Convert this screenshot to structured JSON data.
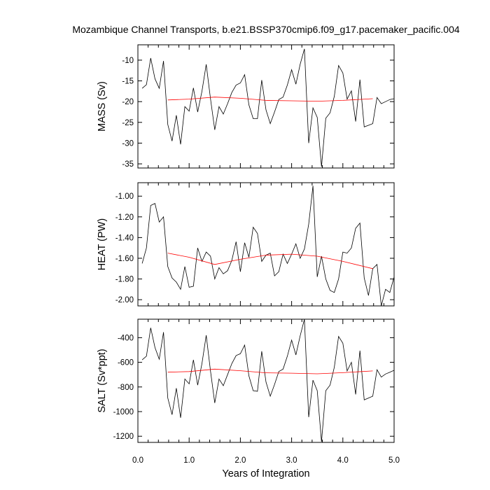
{
  "title": "Mozambique Channel Transports, b.e21.BSSP370cmip6.f09_g17.pacemaker_pacific.004",
  "chart_data": {
    "type": "line",
    "xlabel": "Years of Integration",
    "xlim": [
      0,
      5
    ],
    "xticks": [
      0,
      1,
      2,
      3,
      4,
      5
    ],
    "xtick_labels": [
      "0.0",
      "1.0",
      "2.0",
      "3.0",
      "4.0",
      "5.0"
    ],
    "x": [
      0.083,
      0.167,
      0.25,
      0.333,
      0.417,
      0.5,
      0.583,
      0.667,
      0.75,
      0.833,
      0.917,
      1.0,
      1.083,
      1.167,
      1.25,
      1.333,
      1.417,
      1.5,
      1.583,
      1.667,
      1.75,
      1.833,
      1.917,
      2.0,
      2.083,
      2.167,
      2.25,
      2.333,
      2.417,
      2.5,
      2.583,
      2.667,
      2.75,
      2.833,
      2.917,
      3.0,
      3.083,
      3.167,
      3.25,
      3.333,
      3.417,
      3.5,
      3.583,
      3.667,
      3.75,
      3.833,
      3.917,
      4.0,
      4.083,
      4.167,
      4.25,
      4.333,
      4.417,
      4.5,
      4.583,
      4.667,
      4.75,
      4.833,
      4.917,
      5.0
    ],
    "panels": [
      {
        "ylabel": "MASS (Sv)",
        "ylim": [
          -36,
          -6.3
        ],
        "yticks": [
          -35,
          -30,
          -25,
          -20,
          -15,
          -10
        ],
        "ytick_labels": [
          "-35",
          "-30",
          "-25",
          "-20",
          "-15",
          "-10"
        ],
        "series": [
          {
            "values": [
              -16.8,
              -15.9,
              -9.5,
              -14.5,
              -16.8,
              -10.2,
              -25.5,
              -29.5,
              -23.3,
              -30.3,
              -21.2,
              -22.3,
              -16.7,
              -22.5,
              -17.5,
              -11.0,
              -19.3,
              -26.8,
              -21.2,
              -23.0,
              -20.5,
              -17.8,
              -16.0,
              -15.5,
              -13.5,
              -20.8,
              -24.1,
              -24.1,
              -14.8,
              -22.0,
              -25.3,
              -22.5,
              -19.5,
              -18.9,
              -16.0,
              -12.3,
              -15.8,
              -11.0,
              -7.3,
              -30.0,
              -21.5,
              -23.8,
              -35.7,
              -24.0,
              -22.7,
              -18.7,
              -11.3,
              -13.1,
              -19.4,
              -17.4,
              -24.8,
              -14.7,
              -26.1,
              -25.7,
              -25.3,
              -19.0,
              -20.5,
              -20.0,
              -19.5,
              -19.3
            ],
            "color": "#000000"
          },
          {
            "x": [
              0.583,
              1.0,
              1.5,
              2.0,
              2.5,
              3.0,
              3.5,
              4.0,
              4.583
            ],
            "values": [
              -19.6,
              -19.4,
              -18.9,
              -19.2,
              -19.7,
              -19.8,
              -19.9,
              -19.7,
              -19.3
            ],
            "color": "#ff0000"
          }
        ]
      },
      {
        "ylabel": "HEAT (PW)",
        "ylim": [
          -2.06,
          -0.87
        ],
        "yticks": [
          -2.0,
          -1.8,
          -1.6,
          -1.4,
          -1.2,
          -1.0
        ],
        "ytick_labels": [
          "-2.00",
          "-1.80",
          "-1.60",
          "-1.40",
          "-1.20",
          "-1.00"
        ],
        "series": [
          {
            "values": [
              -1.65,
              -1.5,
              -1.09,
              -1.07,
              -1.25,
              -1.2,
              -1.68,
              -1.79,
              -1.83,
              -1.9,
              -1.68,
              -1.88,
              -1.87,
              -1.5,
              -1.63,
              -1.54,
              -1.58,
              -1.8,
              -1.69,
              -1.75,
              -1.72,
              -1.62,
              -1.44,
              -1.73,
              -1.45,
              -1.59,
              -1.3,
              -1.36,
              -1.63,
              -1.57,
              -1.55,
              -1.77,
              -1.73,
              -1.56,
              -1.65,
              -1.56,
              -1.46,
              -1.6,
              -1.51,
              -1.27,
              -0.9,
              -1.78,
              -1.58,
              -1.8,
              -1.91,
              -1.93,
              -1.8,
              -1.54,
              -1.55,
              -1.5,
              -1.31,
              -1.26,
              -1.79,
              -1.96,
              -1.7,
              -1.66,
              -2.06,
              -1.9,
              -1.93,
              -1.78
            ],
            "color": "#000000"
          },
          {
            "x": [
              0.583,
              1.0,
              1.5,
              2.0,
              2.5,
              3.0,
              3.5,
              4.0,
              4.583
            ],
            "values": [
              -1.55,
              -1.59,
              -1.66,
              -1.61,
              -1.57,
              -1.56,
              -1.58,
              -1.63,
              -1.7
            ],
            "color": "#ff0000"
          }
        ]
      },
      {
        "ylabel": "SALT (Sv*ppt)",
        "ylim": [
          -1250,
          -250
        ],
        "yticks": [
          -1200,
          -1000,
          -800,
          -600,
          -400
        ],
        "ytick_labels": [
          "-1200",
          "-1000",
          "-800",
          "-600",
          "-400"
        ],
        "series": [
          {
            "values": [
              -580,
              -550,
              -320,
              -480,
              -575,
              -355,
              -890,
              -1025,
              -810,
              -1050,
              -735,
              -775,
              -580,
              -785,
              -610,
              -380,
              -670,
              -930,
              -735,
              -790,
              -700,
              -610,
              -545,
              -530,
              -460,
              -710,
              -830,
              -835,
              -510,
              -760,
              -875,
              -780,
              -675,
              -655,
              -550,
              -420,
              -540,
              -385,
              -250,
              -1045,
              -745,
              -830,
              -1245,
              -830,
              -785,
              -640,
              -390,
              -445,
              -670,
              -600,
              -860,
              -505,
              -905,
              -890,
              -875,
              -660,
              -720,
              -695,
              -680,
              -665
            ],
            "color": "#000000"
          },
          {
            "x": [
              0.583,
              1.0,
              1.5,
              2.0,
              2.5,
              3.0,
              3.5,
              4.0,
              4.583
            ],
            "values": [
              -680,
              -675,
              -655,
              -668,
              -685,
              -688,
              -693,
              -684,
              -670
            ],
            "color": "#ff0000"
          }
        ]
      }
    ]
  }
}
